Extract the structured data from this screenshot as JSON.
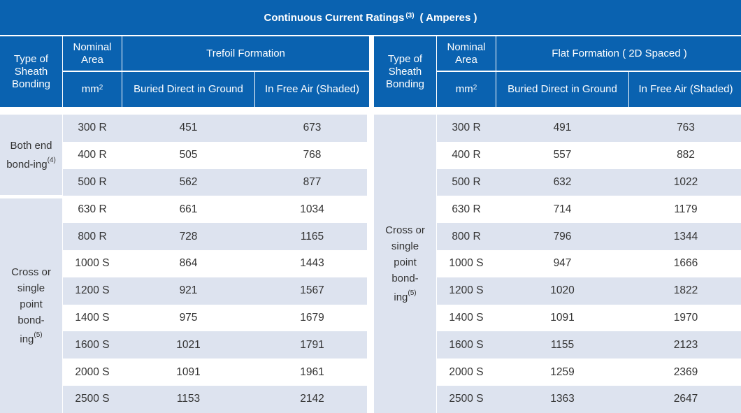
{
  "title": {
    "text": "Continuous Current Ratings",
    "note": "(3)",
    "unit": "( Amperes )"
  },
  "left_table": {
    "header": {
      "type_of_bonding": "Type of Sheath Bonding",
      "nominal_area": "Nominal Area",
      "formation": "Trefoil Formation",
      "unit": "mm",
      "unit_exp": "2",
      "col_buried": "Buried Direct in Ground",
      "col_air": "In Free Air (Shaded)"
    },
    "groups": [
      {
        "label": "Both end bond-ing",
        "note": "(4)"
      },
      {
        "label": "Cross or single point bond-ing",
        "note": "(5)"
      }
    ],
    "rows": [
      {
        "area": "300 R",
        "buried": "451",
        "air": "673"
      },
      {
        "area": "400 R",
        "buried": "505",
        "air": "768"
      },
      {
        "area": "500 R",
        "buried": "562",
        "air": "877"
      },
      {
        "area": "630 R",
        "buried": "661",
        "air": "1034"
      },
      {
        "area": "800 R",
        "buried": "728",
        "air": "1165"
      },
      {
        "area": "1000 S",
        "buried": "864",
        "air": "1443"
      },
      {
        "area": "1200 S",
        "buried": "921",
        "air": "1567"
      },
      {
        "area": "1400 S",
        "buried": "975",
        "air": "1679"
      },
      {
        "area": "1600 S",
        "buried": "1021",
        "air": "1791"
      },
      {
        "area": "2000 S",
        "buried": "1091",
        "air": "1961"
      },
      {
        "area": "2500 S",
        "buried": "1153",
        "air": "2142"
      }
    ]
  },
  "right_table": {
    "header": {
      "type_of_bonding": "Type of Sheath Bonding",
      "nominal_area": "Nominal Area",
      "formation": "Flat Formation ( 2D Spaced )",
      "unit": "mm",
      "unit_exp": "2",
      "col_buried": "Buried Direct in Ground",
      "col_air": "In Free Air (Shaded)"
    },
    "groups": [
      {
        "label": "Cross or single point bond-ing",
        "note": "(5)"
      }
    ],
    "rows": [
      {
        "area": "300 R",
        "buried": "491",
        "air": "763"
      },
      {
        "area": "400 R",
        "buried": "557",
        "air": "882"
      },
      {
        "area": "500 R",
        "buried": "632",
        "air": "1022"
      },
      {
        "area": "630 R",
        "buried": "714",
        "air": "1179"
      },
      {
        "area": "800 R",
        "buried": "796",
        "air": "1344"
      },
      {
        "area": "1000 S",
        "buried": "947",
        "air": "1666"
      },
      {
        "area": "1200 S",
        "buried": "1020",
        "air": "1822"
      },
      {
        "area": "1400 S",
        "buried": "1091",
        "air": "1970"
      },
      {
        "area": "1600 S",
        "buried": "1155",
        "air": "2123"
      },
      {
        "area": "2000 S",
        "buried": "1259",
        "air": "2369"
      },
      {
        "area": "2500 S",
        "buried": "1363",
        "air": "2647"
      }
    ]
  },
  "colors": {
    "header_bg": "#0a62b0",
    "row_shade": "#dde3ef",
    "text": "#333333"
  }
}
